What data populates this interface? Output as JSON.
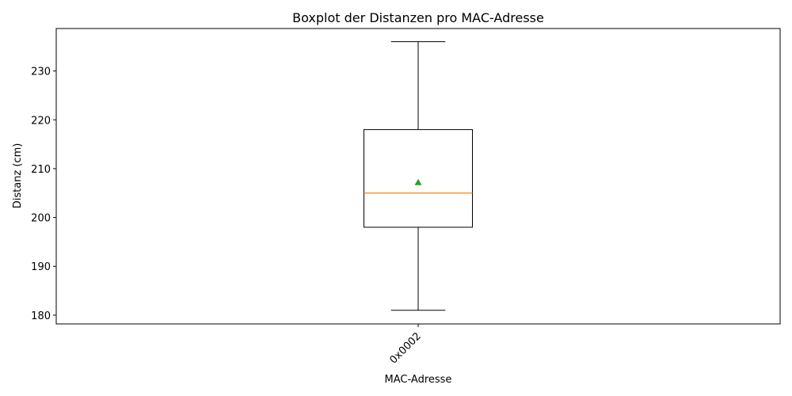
{
  "chart_data": {
    "type": "boxplot",
    "title": "Boxplot der Distanzen pro MAC-Adresse",
    "xlabel": "MAC-Adresse",
    "ylabel": "Distanz (cm)",
    "categories": [
      "0x0002"
    ],
    "boxes": [
      {
        "category": "0x0002",
        "whisker_low": 181,
        "q1": 198,
        "median": 205,
        "q3": 218,
        "whisker_high": 236,
        "mean": 207.2
      }
    ],
    "ylim": [
      178.2,
      238.7
    ],
    "yticks": [
      180,
      190,
      200,
      210,
      220,
      230
    ],
    "x_tick_rotation_deg": -45,
    "grid": false,
    "show_mean": true,
    "colors": {
      "box": "#000000",
      "median": "#ff7f0e",
      "mean": "#2ca02c",
      "axes": "#000000"
    }
  }
}
